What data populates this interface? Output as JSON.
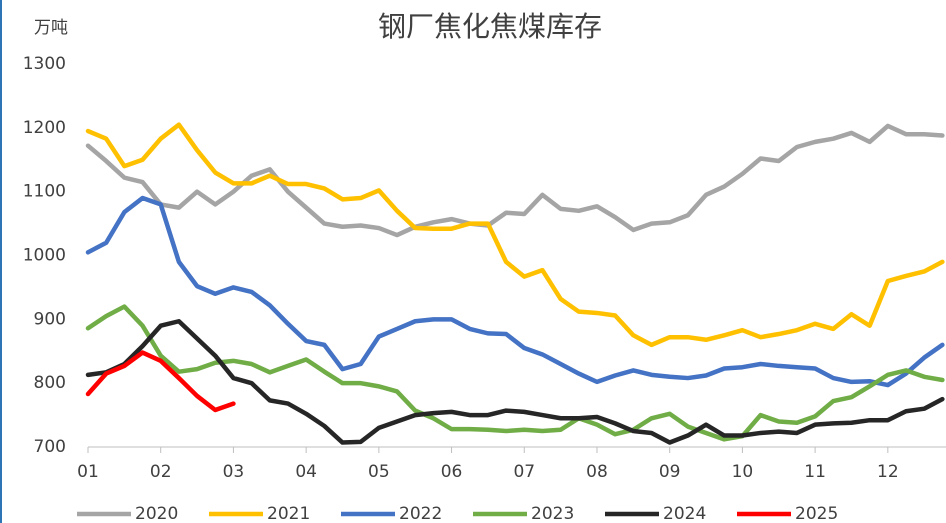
{
  "chart_data": {
    "type": "line",
    "title": "钢厂焦化焦煤库存",
    "y_unit": "万吨",
    "x": [
      1,
      1.25,
      1.5,
      1.75,
      2,
      2.25,
      2.5,
      2.75,
      3,
      3.25,
      3.5,
      3.75,
      4,
      4.25,
      4.5,
      4.75,
      5,
      5.25,
      5.5,
      5.75,
      6,
      6.25,
      6.5,
      6.75,
      7,
      7.25,
      7.5,
      7.75,
      8,
      8.25,
      8.5,
      8.75,
      9,
      9.25,
      9.5,
      9.75,
      10,
      10.25,
      10.5,
      10.75,
      11,
      11.25,
      11.5,
      11.75,
      12,
      12.25,
      12.5,
      12.75
    ],
    "xlim": [
      1,
      12.8
    ],
    "xticks": [
      {
        "value": 1,
        "label": "01"
      },
      {
        "value": 2,
        "label": "02"
      },
      {
        "value": 3,
        "label": "03"
      },
      {
        "value": 4,
        "label": "04"
      },
      {
        "value": 5,
        "label": "05"
      },
      {
        "value": 6,
        "label": "06"
      },
      {
        "value": 7,
        "label": "07"
      },
      {
        "value": 8,
        "label": "08"
      },
      {
        "value": 9,
        "label": "09"
      },
      {
        "value": 10,
        "label": "10"
      },
      {
        "value": 11,
        "label": "11"
      },
      {
        "value": 12,
        "label": "12"
      }
    ],
    "ylim": [
      700,
      1300
    ],
    "yticks": [
      700,
      800,
      900,
      1000,
      1100,
      1200,
      1300
    ],
    "grid": false,
    "series": [
      {
        "name": "2020",
        "color": "#a5a5a5",
        "values": [
          1172,
          1148,
          1122,
          1115,
          1080,
          1075,
          1100,
          1080,
          1100,
          1125,
          1135,
          1100,
          1075,
          1050,
          1045,
          1047,
          1043,
          1032,
          1045,
          1052,
          1057,
          1050,
          1047,
          1067,
          1065,
          1095,
          1073,
          1070,
          1077,
          1060,
          1040,
          1050,
          1052,
          1063,
          1095,
          1108,
          1128,
          1152,
          1148,
          1170,
          1178,
          1183,
          1192,
          1178,
          1203,
          1190,
          1190,
          1188
        ]
      },
      {
        "name": "2021",
        "color": "#ffc000",
        "values": [
          1195,
          1183,
          1140,
          1150,
          1183,
          1205,
          1165,
          1130,
          1113,
          1113,
          1125,
          1112,
          1112,
          1105,
          1088,
          1090,
          1102,
          1070,
          1043,
          1042,
          1042,
          1050,
          1050,
          990,
          967,
          977,
          932,
          912,
          910,
          906,
          875,
          860,
          872,
          872,
          868,
          875,
          883,
          872,
          877,
          883,
          893,
          885,
          908,
          890,
          960,
          968,
          975,
          990
        ]
      },
      {
        "name": "2022",
        "color": "#4472c4",
        "values": [
          1005,
          1020,
          1068,
          1090,
          1080,
          990,
          952,
          940,
          950,
          943,
          922,
          893,
          866,
          860,
          822,
          830,
          873,
          885,
          897,
          900,
          900,
          885,
          878,
          877,
          855,
          845,
          830,
          815,
          802,
          812,
          820,
          813,
          810,
          808,
          812,
          823,
          825,
          830,
          827,
          825,
          823,
          808,
          802,
          803,
          797,
          815,
          840,
          860
        ]
      },
      {
        "name": "2023",
        "color": "#70ad47",
        "values": [
          886,
          905,
          920,
          890,
          843,
          818,
          822,
          832,
          835,
          830,
          817,
          827,
          837,
          818,
          800,
          800,
          795,
          787,
          757,
          745,
          728,
          728,
          727,
          725,
          727,
          725,
          727,
          745,
          735,
          720,
          727,
          745,
          752,
          732,
          722,
          712,
          717,
          750,
          740,
          738,
          748,
          772,
          778,
          795,
          813,
          820,
          810,
          805
        ]
      },
      {
        "name": "2024",
        "color": "#262626",
        "values": [
          813,
          817,
          830,
          858,
          890,
          897,
          870,
          843,
          808,
          800,
          773,
          768,
          752,
          733,
          707,
          708,
          730,
          740,
          750,
          753,
          755,
          750,
          750,
          757,
          755,
          750,
          745,
          745,
          747,
          737,
          725,
          722,
          707,
          718,
          735,
          718,
          718,
          722,
          724,
          722,
          735,
          737,
          738,
          742,
          742,
          756,
          760,
          775
        ]
      },
      {
        "name": "2025",
        "color": "#ff0000",
        "values": [
          783,
          815,
          827,
          848,
          835,
          808,
          780,
          758,
          768,
          null,
          null,
          null,
          null,
          null,
          null,
          null,
          null,
          null,
          null,
          null,
          null,
          null,
          null,
          null,
          null,
          null,
          null,
          null,
          null,
          null,
          null,
          null,
          null,
          null,
          null,
          null,
          null,
          null,
          null,
          null,
          null,
          null,
          null,
          null,
          null,
          null,
          null,
          null
        ]
      }
    ]
  }
}
